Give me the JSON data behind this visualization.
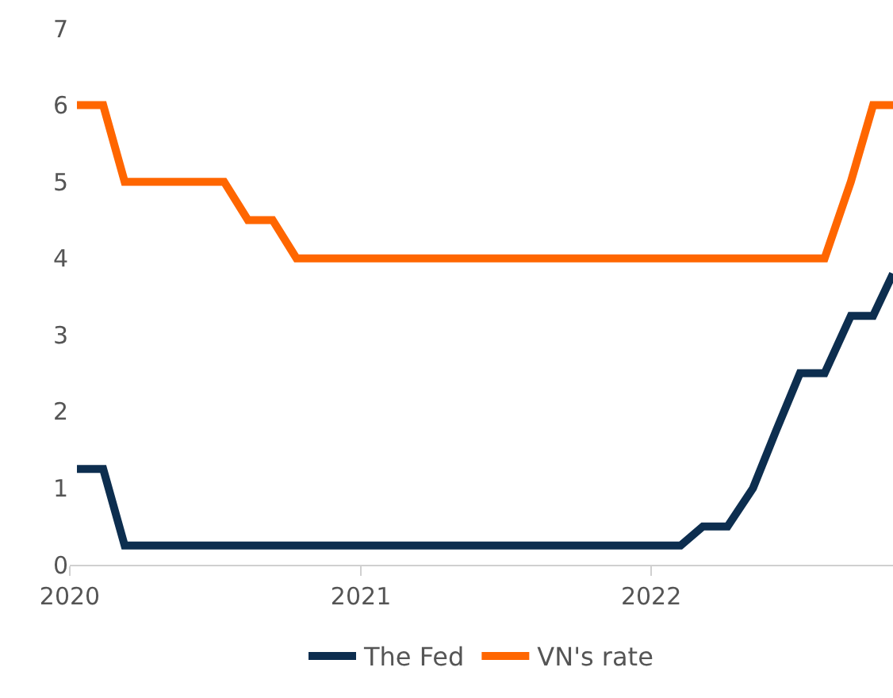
{
  "chart_data": {
    "type": "line",
    "x": [
      "2020-01-10",
      "2020-02-12",
      "2020-03-10",
      "2020-07-13",
      "2020-08-12",
      "2020-09-12",
      "2020-10-12",
      "2022-02-07",
      "2022-03-07",
      "2022-04-07",
      "2022-05-09",
      "2022-06-07",
      "2022-07-07",
      "2022-08-07",
      "2022-09-09",
      "2022-10-07",
      "2022-11-01"
    ],
    "series": [
      {
        "name": "The Fed",
        "color": "#0d2e4f",
        "values": [
          1.25,
          1.25,
          0.25,
          0.25,
          0.25,
          0.25,
          0.25,
          0.25,
          0.5,
          0.5,
          1.0,
          1.75,
          2.5,
          2.5,
          3.25,
          3.25,
          3.8
        ]
      },
      {
        "name": "VN's rate",
        "color": "#ff6600",
        "values": [
          6,
          6,
          5,
          5,
          4.5,
          4.5,
          4,
          4,
          4,
          4,
          4,
          4,
          4,
          4,
          5,
          6,
          6
        ]
      }
    ],
    "xlim": [
      "2020-01-01",
      "2022-11-01"
    ],
    "xticks": [
      {
        "value": "2020-01-01",
        "label": "2020"
      },
      {
        "value": "2021-01-01",
        "label": "2021"
      },
      {
        "value": "2022-01-01",
        "label": "2022"
      }
    ],
    "ylim": [
      0,
      7
    ],
    "yticks": [
      0,
      1,
      2,
      3,
      4,
      5,
      6,
      7
    ],
    "legend": "bottom",
    "marker": "none",
    "line_style": "solid"
  }
}
